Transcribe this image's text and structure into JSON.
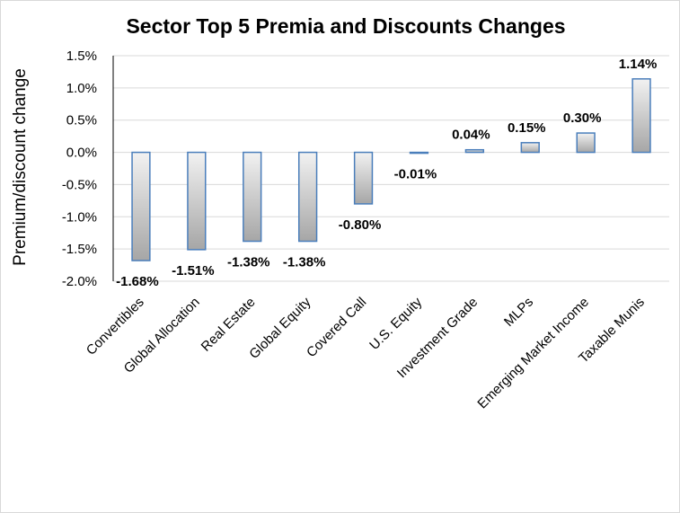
{
  "chart_data": {
    "type": "bar",
    "title": "Sector Top 5 Premia and Discounts Changes",
    "xlabel": "",
    "ylabel": "Premium/discount change",
    "ylim": [
      -2.0,
      1.5
    ],
    "yticks": [
      1.5,
      1.0,
      0.5,
      0.0,
      -0.5,
      -1.0,
      -1.5,
      -2.0
    ],
    "ytick_labels": [
      "1.5%",
      "1.0%",
      "0.5%",
      "0.0%",
      "-0.5%",
      "-1.0%",
      "-1.5%",
      "-2.0%"
    ],
    "grid": true,
    "categories": [
      "Convertibles",
      "Global Allocation",
      "Real Estate",
      "Global Equity",
      "Covered Call",
      "U.S. Equity",
      "Investment Grade",
      "MLPs",
      "Emerging Market Income",
      "Taxable Munis"
    ],
    "values": [
      -1.68,
      -1.51,
      -1.38,
      -1.38,
      -0.8,
      -0.01,
      0.04,
      0.15,
      0.3,
      1.14
    ],
    "data_labels": [
      "-1.68%",
      "-1.51%",
      "-1.38%",
      "-1.38%",
      "-0.80%",
      "-0.01%",
      "0.04%",
      "0.15%",
      "0.30%",
      "1.14%"
    ],
    "bar_fill_light": "#f2f2f2",
    "bar_fill_dark": "#a6a6a6",
    "bar_border": "#4a7ebb"
  }
}
